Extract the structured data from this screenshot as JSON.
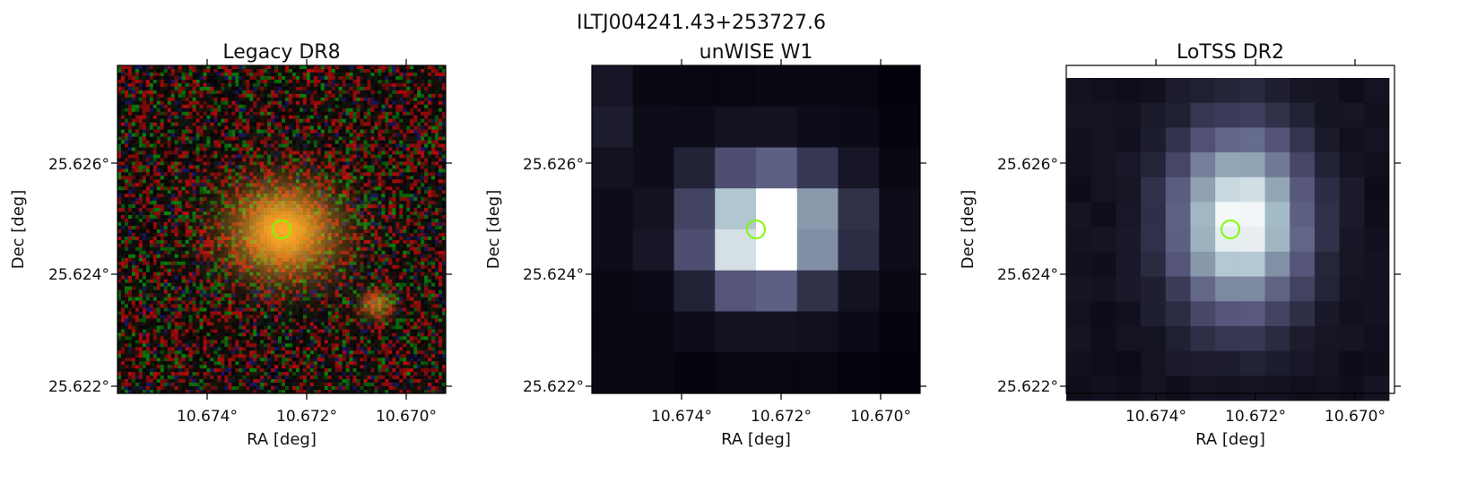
{
  "figure": {
    "title": "ILTJ004241.43+253727.6",
    "marker_color": "#7CFC00"
  },
  "panels": [
    {
      "id": "legacy",
      "title": "Legacy DR8",
      "xlabel": "RA [deg]",
      "ylabel": "Dec [deg]",
      "xticks": [
        "10.674°",
        "10.672°",
        "10.670°"
      ],
      "yticks": [
        "25.626°",
        "25.624°",
        "25.622°"
      ],
      "colormap": "rgb"
    },
    {
      "id": "unwise",
      "title": "unWISE W1",
      "xlabel": "RA [deg]",
      "ylabel": "Dec [deg]",
      "xticks": [
        "10.674°",
        "10.672°",
        "10.670°"
      ],
      "yticks": [
        "25.626°",
        "25.624°",
        "25.622°"
      ],
      "colormap": "bone"
    },
    {
      "id": "lotss",
      "title": "LoTSS DR2",
      "xlabel": "RA [deg]",
      "ylabel": "Dec [deg]",
      "xticks": [
        "10.674°",
        "10.672°",
        "10.670°"
      ],
      "yticks": [
        "25.626°",
        "25.624°",
        "25.622°"
      ],
      "colormap": "bone"
    }
  ]
}
